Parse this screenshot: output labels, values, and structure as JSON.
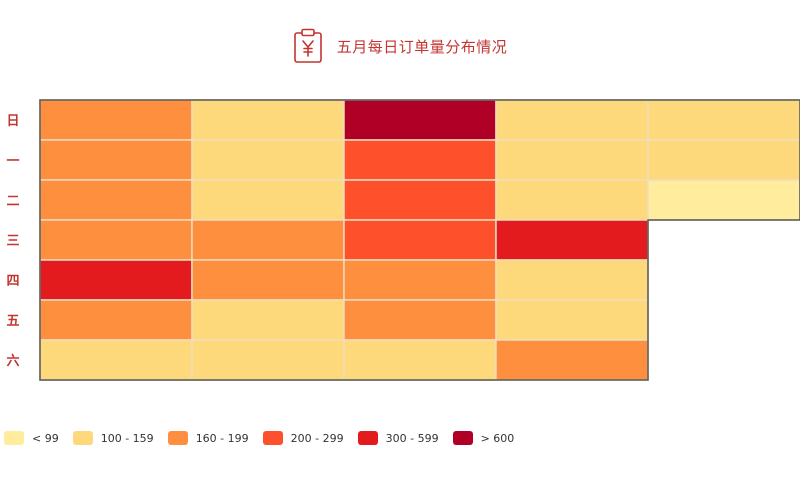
{
  "title": {
    "text": "五月每日订单量分布情况",
    "icon": "yuan-clipboard-icon",
    "color": "#c23531"
  },
  "chart_data": {
    "type": "heatmap",
    "title": "五月每日订单量分布情况",
    "y_categories": [
      "日",
      "一",
      "二",
      "三",
      "四",
      "五",
      "六"
    ],
    "weeks": 5,
    "cells": [
      {
        "week": 1,
        "row": 0,
        "bucket": 2
      },
      {
        "week": 1,
        "row": 1,
        "bucket": 2
      },
      {
        "week": 1,
        "row": 2,
        "bucket": 2
      },
      {
        "week": 1,
        "row": 3,
        "bucket": 2
      },
      {
        "week": 1,
        "row": 4,
        "bucket": 4
      },
      {
        "week": 1,
        "row": 5,
        "bucket": 2
      },
      {
        "week": 1,
        "row": 6,
        "bucket": 1
      },
      {
        "week": 2,
        "row": 0,
        "bucket": 1
      },
      {
        "week": 2,
        "row": 1,
        "bucket": 1
      },
      {
        "week": 2,
        "row": 2,
        "bucket": 1
      },
      {
        "week": 2,
        "row": 3,
        "bucket": 2
      },
      {
        "week": 2,
        "row": 4,
        "bucket": 2
      },
      {
        "week": 2,
        "row": 5,
        "bucket": 1
      },
      {
        "week": 2,
        "row": 6,
        "bucket": 1
      },
      {
        "week": 3,
        "row": 0,
        "bucket": 5
      },
      {
        "week": 3,
        "row": 1,
        "bucket": 3
      },
      {
        "week": 3,
        "row": 2,
        "bucket": 3
      },
      {
        "week": 3,
        "row": 3,
        "bucket": 3
      },
      {
        "week": 3,
        "row": 4,
        "bucket": 2
      },
      {
        "week": 3,
        "row": 5,
        "bucket": 2
      },
      {
        "week": 3,
        "row": 6,
        "bucket": 1
      },
      {
        "week": 4,
        "row": 0,
        "bucket": 1
      },
      {
        "week": 4,
        "row": 1,
        "bucket": 1
      },
      {
        "week": 4,
        "row": 2,
        "bucket": 1
      },
      {
        "week": 4,
        "row": 3,
        "bucket": 4
      },
      {
        "week": 4,
        "row": 4,
        "bucket": 1
      },
      {
        "week": 4,
        "row": 5,
        "bucket": 1
      },
      {
        "week": 4,
        "row": 6,
        "bucket": 2
      },
      {
        "week": 5,
        "row": 0,
        "bucket": 1
      },
      {
        "week": 5,
        "row": 1,
        "bucket": 1
      },
      {
        "week": 5,
        "row": 2,
        "bucket": 0
      }
    ],
    "legend": [
      {
        "label": "< 99",
        "color": "#ffec9c"
      },
      {
        "label": "100 - 159",
        "color": "#fdd97b"
      },
      {
        "label": "160 - 199",
        "color": "#fe8f3e"
      },
      {
        "label": "200 - 299",
        "color": "#fe502b"
      },
      {
        "label": "300 - 599",
        "color": "#e31b1f"
      },
      {
        "label": "> 600",
        "color": "#b10026"
      }
    ],
    "ylabel_color": "#c23531",
    "grid": false,
    "legend_position": "bottom-left"
  }
}
